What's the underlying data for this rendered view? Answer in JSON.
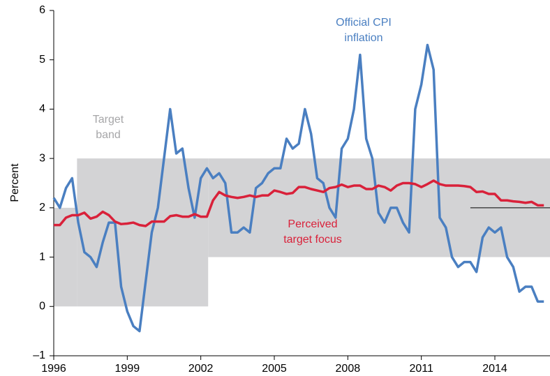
{
  "chart_data": {
    "type": "line",
    "y_label": "Percent",
    "x": [
      1996,
      1996.25,
      1996.5,
      1996.75,
      1997,
      1997.25,
      1997.5,
      1997.75,
      1998,
      1998.25,
      1998.5,
      1998.75,
      1999,
      1999.25,
      1999.5,
      1999.75,
      2000,
      2000.25,
      2000.5,
      2000.75,
      2001,
      2001.25,
      2001.5,
      2001.75,
      2002,
      2002.25,
      2002.5,
      2002.75,
      2003,
      2003.25,
      2003.5,
      2003.75,
      2004,
      2004.25,
      2004.5,
      2004.75,
      2005,
      2005.25,
      2005.5,
      2005.75,
      2006,
      2006.25,
      2006.5,
      2006.75,
      2007,
      2007.25,
      2007.5,
      2007.75,
      2008,
      2008.25,
      2008.5,
      2008.75,
      2009,
      2009.25,
      2009.5,
      2009.75,
      2010,
      2010.25,
      2010.5,
      2010.75,
      2011,
      2011.25,
      2011.5,
      2011.75,
      2012,
      2012.25,
      2012.5,
      2012.75,
      2013,
      2013.25,
      2013.5,
      2013.75,
      2014,
      2014.25,
      2014.5,
      2014.75,
      2015,
      2015.25,
      2015.5,
      2015.75,
      2016
    ],
    "series": [
      {
        "name": "Official CPI inflation",
        "color": "#4a7fc1",
        "values": [
          2.2,
          2.0,
          2.4,
          2.6,
          1.7,
          1.1,
          1.0,
          0.8,
          1.3,
          1.7,
          1.7,
          0.4,
          -0.1,
          -0.4,
          -0.5,
          0.5,
          1.5,
          2.0,
          3.0,
          4.0,
          3.1,
          3.2,
          2.4,
          1.8,
          2.6,
          2.8,
          2.6,
          2.7,
          2.5,
          1.5,
          1.5,
          1.6,
          1.5,
          2.4,
          2.5,
          2.7,
          2.8,
          2.8,
          3.4,
          3.2,
          3.3,
          4.0,
          3.5,
          2.6,
          2.5,
          2.0,
          1.8,
          3.2,
          3.4,
          4.0,
          5.1,
          3.4,
          3.0,
          1.9,
          1.7,
          2.0,
          2.0,
          1.7,
          1.5,
          4.0,
          4.5,
          5.3,
          4.8,
          1.8,
          1.6,
          1.0,
          0.8,
          0.9,
          0.9,
          0.7,
          1.4,
          1.6,
          1.5,
          1.6,
          1.0,
          0.8,
          0.3,
          0.4,
          0.4,
          0.1,
          0.1
        ]
      },
      {
        "name": "Perceived target focus",
        "color": "#d9213a",
        "values": [
          1.65,
          1.65,
          1.8,
          1.85,
          1.85,
          1.9,
          1.78,
          1.82,
          1.92,
          1.85,
          1.72,
          1.67,
          1.68,
          1.7,
          1.65,
          1.63,
          1.72,
          1.72,
          1.72,
          1.83,
          1.85,
          1.82,
          1.82,
          1.87,
          1.82,
          1.82,
          2.15,
          2.32,
          2.25,
          2.22,
          2.2,
          2.22,
          2.25,
          2.22,
          2.25,
          2.25,
          2.35,
          2.32,
          2.28,
          2.3,
          2.42,
          2.42,
          2.38,
          2.35,
          2.32,
          2.4,
          2.42,
          2.47,
          2.42,
          2.45,
          2.45,
          2.38,
          2.38,
          2.45,
          2.42,
          2.35,
          2.45,
          2.5,
          2.5,
          2.48,
          2.42,
          2.48,
          2.55,
          2.48,
          2.45,
          2.45,
          2.45,
          2.44,
          2.42,
          2.32,
          2.33,
          2.28,
          2.28,
          2.15,
          2.15,
          2.13,
          2.12,
          2.1,
          2.12,
          2.05,
          2.05
        ]
      }
    ],
    "band": {
      "color": "#d3d3d5",
      "segments": [
        {
          "x0": 1996,
          "x1": 1996.95,
          "low": 0,
          "high": 2
        },
        {
          "x0": 1996.95,
          "x1": 2002.3,
          "low": 0,
          "high": 3
        },
        {
          "x0": 2002.3,
          "x1": 2016.25,
          "low": 1,
          "high": 3
        }
      ]
    },
    "reference_line": {
      "x0": 2013,
      "x1": 2016.25,
      "y": 2,
      "color": "#000000"
    },
    "annotations": [
      {
        "lines": [
          "Official CPI",
          "inflation"
        ],
        "color": "#4a7fc1"
      },
      {
        "lines": [
          "Target",
          "band"
        ],
        "color": "#a6a6a8"
      },
      {
        "lines": [
          "Perceived",
          "target focus"
        ],
        "color": "#d9213a"
      }
    ],
    "xlim": [
      1996,
      2016.25
    ],
    "ylim": [
      -1,
      6
    ],
    "xticks": [
      1996,
      1999,
      2002,
      2005,
      2008,
      2011,
      2014
    ],
    "yticks": [
      {
        "value": -1,
        "label": "–1"
      },
      0,
      1,
      2,
      3,
      4,
      5,
      6
    ]
  }
}
